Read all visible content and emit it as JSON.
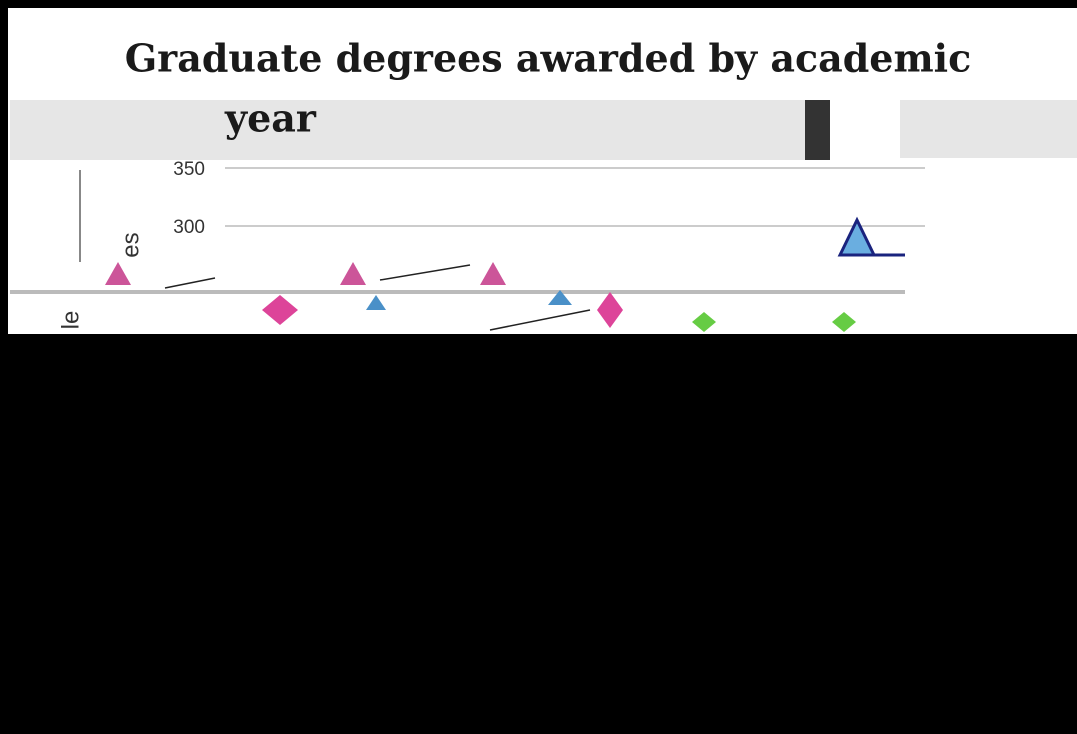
{
  "header": {
    "title_lines": [
      "Graduate degrees awarded by academic",
      "year"
    ]
  },
  "axis": {
    "tick_labels": [
      "350",
      "300"
    ],
    "label_fragments": [
      "es",
      "le"
    ]
  }
}
